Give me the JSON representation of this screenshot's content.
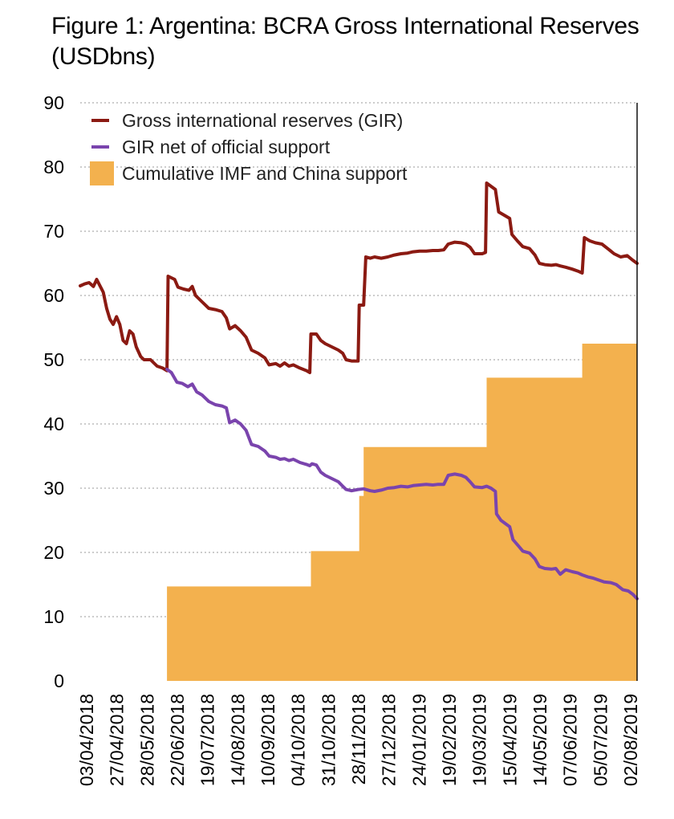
{
  "chart_data": {
    "type": "line+area",
    "title": "Figure 1: Argentina: BCRA Gross International Reserves (USDbns)",
    "xlabel": "",
    "ylabel": "",
    "ylim": [
      0,
      90
    ],
    "yticks": [
      0,
      10,
      20,
      30,
      40,
      50,
      60,
      70,
      80,
      90
    ],
    "xlim": [
      "03/04/2018",
      "23/08/2019"
    ],
    "xticks": [
      "03/04/2018",
      "27/04/2018",
      "28/05/2018",
      "22/06/2018",
      "19/07/2018",
      "14/08/2018",
      "10/09/2018",
      "04/10/2018",
      "31/10/2018",
      "28/11/2018",
      "27/12/2018",
      "24/01/2019",
      "19/02/2019",
      "19/03/2019",
      "15/04/2019",
      "14/05/2019",
      "07/06/2019",
      "05/07/2019",
      "02/08/2019"
    ],
    "legend": {
      "position": "top-left"
    },
    "grid": "horizontal dotted",
    "series": [
      {
        "name": "Gross international reserves (GIR)",
        "kind": "line",
        "color": "#8b1a12",
        "points": [
          [
            "03/04/2018",
            61.5
          ],
          [
            "07/04/2018",
            61.8
          ],
          [
            "11/04/2018",
            62.0
          ],
          [
            "15/04/2018",
            61.4
          ],
          [
            "18/04/2018",
            62.5
          ],
          [
            "21/04/2018",
            61.5
          ],
          [
            "24/04/2018",
            60.5
          ],
          [
            "27/04/2018",
            58.0
          ],
          [
            "30/04/2018",
            56.3
          ],
          [
            "03/05/2018",
            55.5
          ],
          [
            "06/05/2018",
            56.7
          ],
          [
            "09/05/2018",
            55.5
          ],
          [
            "12/05/2018",
            53.0
          ],
          [
            "15/05/2018",
            52.5
          ],
          [
            "18/05/2018",
            54.5
          ],
          [
            "21/05/2018",
            54.0
          ],
          [
            "24/05/2018",
            52.0
          ],
          [
            "28/05/2018",
            50.5
          ],
          [
            "31/05/2018",
            50.0
          ],
          [
            "06/06/2018",
            50.0
          ],
          [
            "12/06/2018",
            49.0
          ],
          [
            "17/06/2018",
            48.7
          ],
          [
            "21/06/2018",
            48.3
          ],
          [
            "22/06/2018",
            63.0
          ],
          [
            "28/06/2018",
            62.5
          ],
          [
            "01/07/2018",
            61.3
          ],
          [
            "06/07/2018",
            61.0
          ],
          [
            "11/07/2018",
            60.8
          ],
          [
            "14/07/2018",
            61.4
          ],
          [
            "17/07/2018",
            60.0
          ],
          [
            "23/07/2018",
            59.0
          ],
          [
            "29/07/2018",
            58.0
          ],
          [
            "04/08/2018",
            57.8
          ],
          [
            "10/08/2018",
            57.5
          ],
          [
            "14/08/2018",
            56.5
          ],
          [
            "17/08/2018",
            54.8
          ],
          [
            "22/08/2018",
            55.3
          ],
          [
            "27/08/2018",
            54.5
          ],
          [
            "01/09/2018",
            53.5
          ],
          [
            "06/09/2018",
            51.5
          ],
          [
            "12/09/2018",
            51.0
          ],
          [
            "18/09/2018",
            50.3
          ],
          [
            "22/09/2018",
            49.2
          ],
          [
            "28/09/2018",
            49.4
          ],
          [
            "02/10/2018",
            49.0
          ],
          [
            "06/10/2018",
            49.5
          ],
          [
            "10/10/2018",
            49.0
          ],
          [
            "14/10/2018",
            49.2
          ],
          [
            "20/10/2018",
            48.7
          ],
          [
            "26/10/2018",
            48.3
          ],
          [
            "29/10/2018",
            48.0
          ],
          [
            "30/10/2018",
            54.0
          ],
          [
            "04/11/2018",
            54.0
          ],
          [
            "08/11/2018",
            53.0
          ],
          [
            "12/11/2018",
            52.5
          ],
          [
            "18/11/2018",
            52.0
          ],
          [
            "24/11/2018",
            51.5
          ],
          [
            "28/11/2018",
            51.0
          ],
          [
            "01/12/2018",
            50.0
          ],
          [
            "06/12/2018",
            49.8
          ],
          [
            "12/12/2018",
            49.8
          ],
          [
            "13/12/2018",
            58.5
          ],
          [
            "17/12/2018",
            58.5
          ],
          [
            "19/12/2018",
            66.0
          ],
          [
            "23/12/2018",
            65.8
          ],
          [
            "27/12/2018",
            66.0
          ],
          [
            "02/01/2019",
            65.8
          ],
          [
            "08/01/2019",
            66.0
          ],
          [
            "14/01/2019",
            66.3
          ],
          [
            "20/01/2019",
            66.5
          ],
          [
            "26/01/2019",
            66.6
          ],
          [
            "31/01/2019",
            66.8
          ],
          [
            "06/02/2019",
            66.9
          ],
          [
            "12/02/2019",
            66.9
          ],
          [
            "18/02/2019",
            67.0
          ],
          [
            "23/02/2019",
            67.0
          ],
          [
            "28/02/2019",
            67.1
          ],
          [
            "04/03/2019",
            68.0
          ],
          [
            "10/03/2019",
            68.3
          ],
          [
            "16/03/2019",
            68.2
          ],
          [
            "20/03/2019",
            68.0
          ],
          [
            "24/03/2019",
            67.5
          ],
          [
            "28/03/2019",
            66.5
          ],
          [
            "04/04/2019",
            66.5
          ],
          [
            "07/04/2019",
            66.7
          ],
          [
            "08/04/2019",
            77.5
          ],
          [
            "12/04/2019",
            77.0
          ],
          [
            "16/04/2019",
            76.5
          ],
          [
            "19/04/2019",
            73.0
          ],
          [
            "24/04/2019",
            72.5
          ],
          [
            "29/04/2019",
            72.0
          ],
          [
            "01/05/2019",
            69.5
          ],
          [
            "06/05/2019",
            68.5
          ],
          [
            "11/05/2019",
            67.6
          ],
          [
            "17/05/2019",
            67.3
          ],
          [
            "22/05/2019",
            66.3
          ],
          [
            "26/05/2019",
            65.0
          ],
          [
            "31/05/2019",
            64.8
          ],
          [
            "06/06/2019",
            64.7
          ],
          [
            "10/06/2019",
            64.8
          ],
          [
            "14/06/2019",
            64.6
          ],
          [
            "19/06/2019",
            64.4
          ],
          [
            "25/06/2019",
            64.1
          ],
          [
            "30/06/2019",
            63.8
          ],
          [
            "04/07/2019",
            63.5
          ],
          [
            "06/07/2019",
            69.0
          ],
          [
            "11/07/2019",
            68.5
          ],
          [
            "16/07/2019",
            68.2
          ],
          [
            "22/07/2019",
            68.0
          ],
          [
            "28/07/2019",
            67.2
          ],
          [
            "02/08/2019",
            66.5
          ],
          [
            "08/08/2019",
            66.0
          ],
          [
            "14/08/2019",
            66.2
          ],
          [
            "19/08/2019",
            65.5
          ],
          [
            "23/08/2019",
            65.0
          ]
        ]
      },
      {
        "name": "GIR net of official support",
        "kind": "line",
        "color": "#7a44ad",
        "points": [
          [
            "21/06/2018",
            48.5
          ],
          [
            "25/06/2018",
            48.0
          ],
          [
            "30/06/2018",
            46.5
          ],
          [
            "05/07/2018",
            46.3
          ],
          [
            "10/07/2018",
            45.8
          ],
          [
            "14/07/2018",
            46.2
          ],
          [
            "18/07/2018",
            45.0
          ],
          [
            "23/07/2018",
            44.5
          ],
          [
            "29/07/2018",
            43.5
          ],
          [
            "04/08/2018",
            43.0
          ],
          [
            "10/08/2018",
            42.8
          ],
          [
            "14/08/2018",
            42.5
          ],
          [
            "17/08/2018",
            40.2
          ],
          [
            "22/08/2018",
            40.6
          ],
          [
            "27/08/2018",
            40.0
          ],
          [
            "01/09/2018",
            39.0
          ],
          [
            "06/09/2018",
            36.8
          ],
          [
            "12/09/2018",
            36.5
          ],
          [
            "18/09/2018",
            35.8
          ],
          [
            "22/09/2018",
            35.0
          ],
          [
            "28/09/2018",
            34.8
          ],
          [
            "02/10/2018",
            34.5
          ],
          [
            "06/10/2018",
            34.6
          ],
          [
            "10/10/2018",
            34.3
          ],
          [
            "14/10/2018",
            34.5
          ],
          [
            "20/10/2018",
            34.0
          ],
          [
            "26/10/2018",
            33.7
          ],
          [
            "29/10/2018",
            33.5
          ],
          [
            "31/10/2018",
            33.8
          ],
          [
            "04/11/2018",
            33.6
          ],
          [
            "08/11/2018",
            32.5
          ],
          [
            "12/11/2018",
            32.0
          ],
          [
            "18/11/2018",
            31.5
          ],
          [
            "24/11/2018",
            31.0
          ],
          [
            "28/11/2018",
            30.3
          ],
          [
            "01/12/2018",
            29.8
          ],
          [
            "06/12/2018",
            29.6
          ],
          [
            "12/12/2018",
            29.8
          ],
          [
            "17/12/2018",
            29.9
          ],
          [
            "23/12/2018",
            29.6
          ],
          [
            "27/12/2018",
            29.5
          ],
          [
            "02/01/2019",
            29.7
          ],
          [
            "08/01/2019",
            30.0
          ],
          [
            "14/01/2019",
            30.1
          ],
          [
            "20/01/2019",
            30.3
          ],
          [
            "26/01/2019",
            30.2
          ],
          [
            "31/01/2019",
            30.4
          ],
          [
            "06/02/2019",
            30.5
          ],
          [
            "12/02/2019",
            30.6
          ],
          [
            "18/02/2019",
            30.5
          ],
          [
            "23/02/2019",
            30.6
          ],
          [
            "28/02/2019",
            30.6
          ],
          [
            "04/03/2019",
            32.0
          ],
          [
            "10/03/2019",
            32.2
          ],
          [
            "16/03/2019",
            32.0
          ],
          [
            "20/03/2019",
            31.7
          ],
          [
            "24/03/2019",
            31.0
          ],
          [
            "28/03/2019",
            30.2
          ],
          [
            "04/04/2019",
            30.1
          ],
          [
            "08/04/2019",
            30.3
          ],
          [
            "12/04/2019",
            30.0
          ],
          [
            "16/04/2019",
            29.5
          ],
          [
            "17/04/2019",
            26.0
          ],
          [
            "21/04/2019",
            25.0
          ],
          [
            "25/04/2019",
            24.5
          ],
          [
            "29/04/2019",
            24.0
          ],
          [
            "02/05/2019",
            22.0
          ],
          [
            "07/05/2019",
            21.0
          ],
          [
            "11/05/2019",
            20.2
          ],
          [
            "17/05/2019",
            19.9
          ],
          [
            "22/05/2019",
            19.0
          ],
          [
            "26/05/2019",
            17.8
          ],
          [
            "31/05/2019",
            17.5
          ],
          [
            "06/06/2019",
            17.4
          ],
          [
            "10/06/2019",
            17.5
          ],
          [
            "14/06/2019",
            16.6
          ],
          [
            "19/06/2019",
            17.3
          ],
          [
            "25/06/2019",
            17.0
          ],
          [
            "30/06/2019",
            16.8
          ],
          [
            "04/07/2019",
            16.5
          ],
          [
            "09/07/2019",
            16.2
          ],
          [
            "14/07/2019",
            16.0
          ],
          [
            "19/07/2019",
            15.7
          ],
          [
            "24/07/2019",
            15.4
          ],
          [
            "30/07/2019",
            15.3
          ],
          [
            "04/08/2019",
            15.0
          ],
          [
            "10/08/2019",
            14.2
          ],
          [
            "15/08/2019",
            14.0
          ],
          [
            "19/08/2019",
            13.5
          ],
          [
            "23/08/2019",
            12.8
          ]
        ]
      },
      {
        "name": "Cumulative IMF and China support",
        "kind": "step-area",
        "color": "#f3b14e",
        "points": [
          [
            "21/06/2018",
            14.7
          ],
          [
            "30/10/2018",
            20.2
          ],
          [
            "13/12/2018",
            28.8
          ],
          [
            "17/12/2018",
            36.4
          ],
          [
            "08/04/2019",
            47.2
          ],
          [
            "04/07/2019",
            52.5
          ],
          [
            "23/08/2019",
            52.5
          ]
        ]
      }
    ]
  }
}
